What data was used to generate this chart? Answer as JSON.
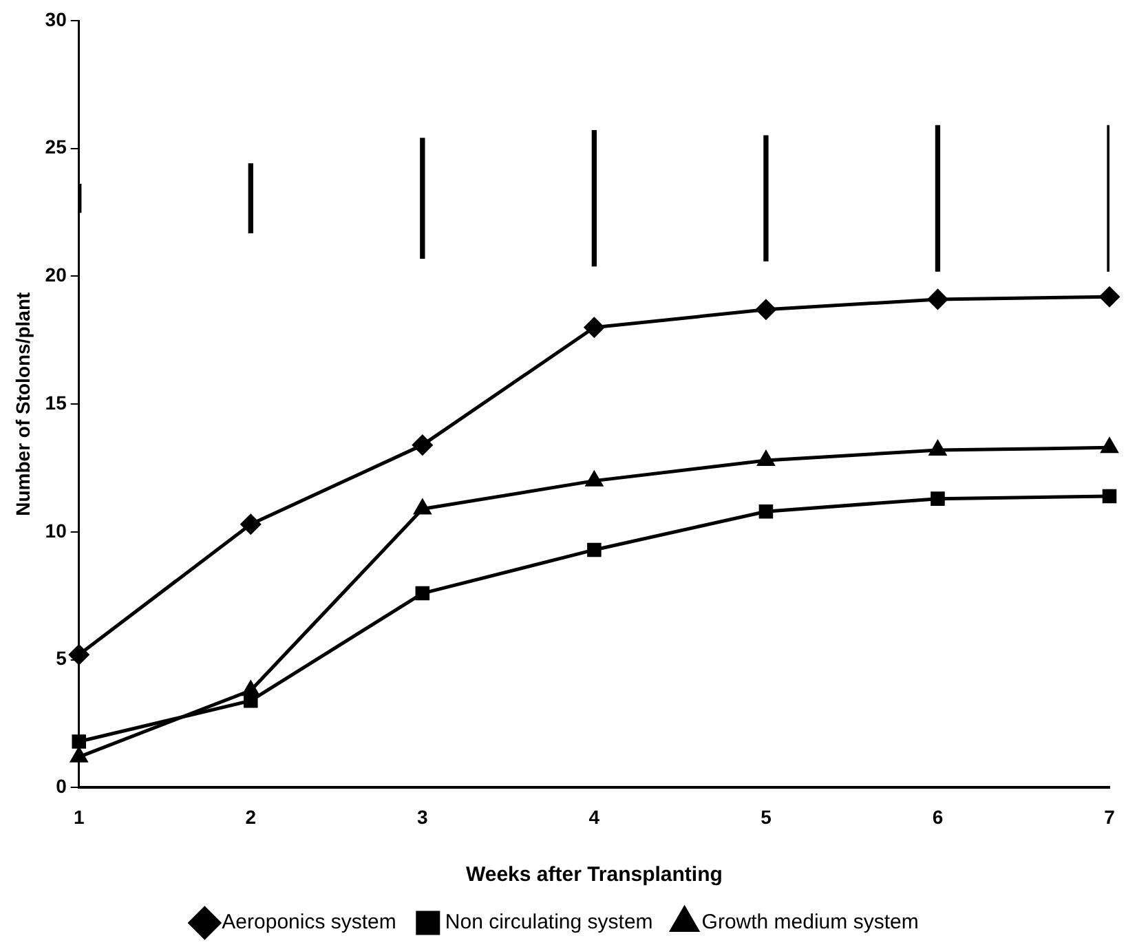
{
  "chart_data": {
    "type": "line",
    "xlabel": "Weeks after Transplanting",
    "ylabel": "Number of Stolons/plant",
    "categories": [
      "1",
      "2",
      "3",
      "4",
      "5",
      "6",
      "7"
    ],
    "ylim": [
      0,
      30
    ],
    "yticks": [
      0,
      5,
      10,
      15,
      20,
      25,
      30
    ],
    "grid": false,
    "legend": "bottom",
    "line_style": "solid",
    "series": [
      {
        "name": "Aeroponics system",
        "color": "#000000",
        "marker": "diamond",
        "values": [
          5.2,
          10.3,
          13.4,
          18.0,
          18.7,
          19.1,
          19.2
        ]
      },
      {
        "name": "Non circulating system",
        "color": "#000000",
        "marker": "square",
        "values": [
          1.8,
          3.4,
          7.6,
          9.3,
          10.8,
          11.3,
          11.4
        ]
      },
      {
        "name": "Growth medium system",
        "color": "#000000",
        "marker": "triangle",
        "values": [
          1.2,
          3.8,
          10.9,
          12.0,
          12.8,
          13.2,
          13.3
        ]
      },
      {
        "type": "bar",
        "color": "#000000",
        "base": [
          22.5,
          21.7,
          20.7,
          20.4,
          20.6,
          20.2,
          20.2
        ],
        "values": [
          1.1,
          2.7,
          4.7,
          5.3,
          4.9,
          5.7,
          5.7
        ]
      }
    ]
  }
}
